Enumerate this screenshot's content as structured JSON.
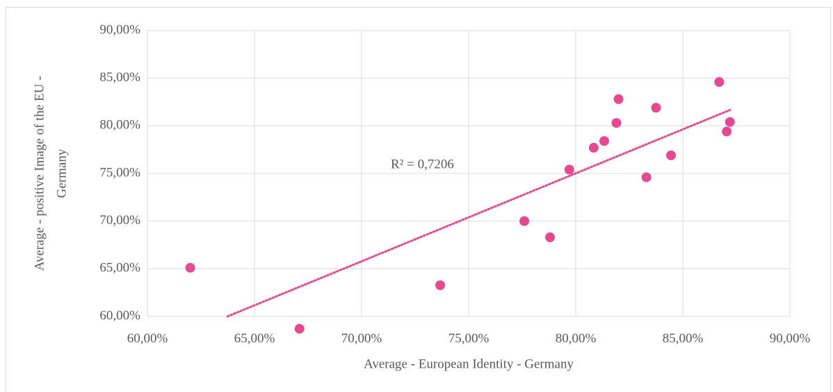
{
  "chart_data": {
    "type": "scatter",
    "x_label": "Average - European Identity - Germany",
    "y_label": [
      "Average - positive Image of the EU -",
      "Germany"
    ],
    "annotation": "R² = 0,7206",
    "color": "#e8488f",
    "trendline": true,
    "grid": true,
    "x": [
      62.0,
      67.1,
      73.67,
      77.6,
      78.8,
      79.7,
      80.84,
      81.33,
      81.9,
      82.0,
      83.3,
      83.75,
      84.45,
      86.7,
      87.05,
      87.2
    ],
    "values": [
      65.1,
      58.7,
      63.27,
      70.0,
      68.3,
      75.4,
      77.7,
      78.4,
      80.3,
      82.8,
      74.6,
      81.9,
      76.9,
      84.6,
      79.4,
      80.4
    ],
    "xlim": [
      60,
      90
    ],
    "ylim": [
      60,
      90
    ],
    "xticks": [
      {
        "value": 60,
        "label": "60,00%"
      },
      {
        "value": 65,
        "label": "65,00%"
      },
      {
        "value": 70,
        "label": "70,00%"
      },
      {
        "value": 75,
        "label": "75,00%"
      },
      {
        "value": 80,
        "label": "80,00%"
      },
      {
        "value": 85,
        "label": "85,00%"
      },
      {
        "value": 90,
        "label": "90,00%"
      }
    ],
    "yticks": [
      {
        "value": 60,
        "label": "60,00%"
      },
      {
        "value": 65,
        "label": "65,00%"
      },
      {
        "value": 70,
        "label": "70,00%"
      },
      {
        "value": 75,
        "label": "75,00%"
      },
      {
        "value": 80,
        "label": "80,00%"
      },
      {
        "value": 85,
        "label": "85,00%"
      },
      {
        "value": 90,
        "label": "90,00%"
      }
    ]
  }
}
